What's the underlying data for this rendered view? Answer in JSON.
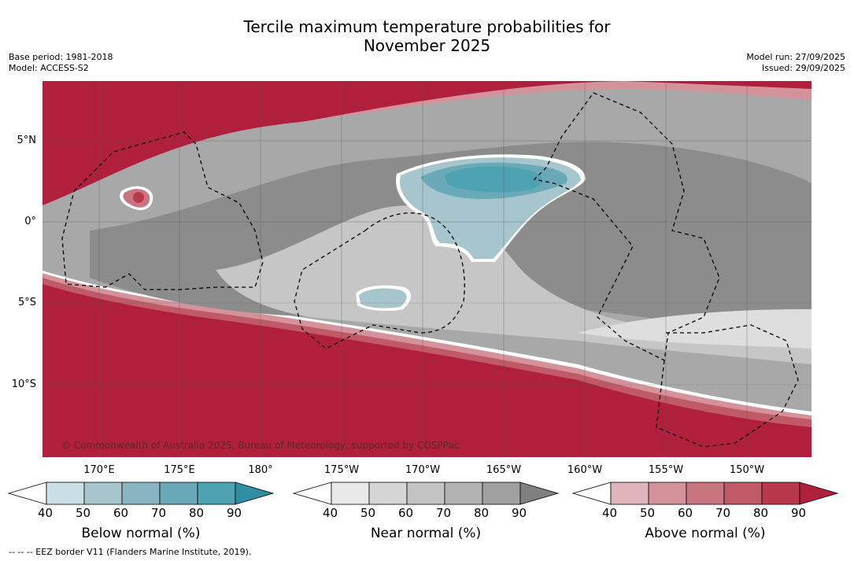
{
  "title_line1": "Tercile maximum temperature probabilities for",
  "title_line2": "November 2025",
  "base_period": "Base period: 1981-2018",
  "model": "Model: ACCESS-S2",
  "model_run": "Model run: 27/09/2025",
  "issued": "Issued: 29/09/2025",
  "copyright": "© Commonwealth of Australia 2025, Bureau of Meteorology, supported by COSPPac",
  "footnote": "--  --  -- EEZ border V11 (Flanders Marine Institute, 2019).",
  "lat_ticks": [
    "5°N",
    "0°",
    "5°S",
    "10°S"
  ],
  "lon_ticks": [
    "170°E",
    "175°E",
    "180°",
    "175°W",
    "170°W",
    "165°W",
    "160°W",
    "155°W",
    "150°W"
  ],
  "colorbars": [
    {
      "title": "Below normal (%)",
      "ticks": [
        "40",
        "50",
        "60",
        "70",
        "80",
        "90"
      ],
      "colors": [
        "#ffffff",
        "#c9e0e6",
        "#a6c5cc",
        "#89b5c0",
        "#6aaab8",
        "#4ea3b2",
        "#2d8fa1"
      ]
    },
    {
      "title": "Near normal (%)",
      "ticks": [
        "40",
        "50",
        "60",
        "70",
        "80",
        "90"
      ],
      "colors": [
        "#ffffff",
        "#e8e8e8",
        "#d6d6d6",
        "#c4c4c4",
        "#b3b3b3",
        "#a0a0a0",
        "#808080"
      ]
    },
    {
      "title": "Above normal (%)",
      "ticks": [
        "40",
        "50",
        "60",
        "70",
        "80",
        "90"
      ],
      "colors": [
        "#ffffff",
        "#dfb4ba",
        "#d4939b",
        "#c9757f",
        "#c05a66",
        "#b9384a",
        "#b01f3c"
      ]
    }
  ]
}
